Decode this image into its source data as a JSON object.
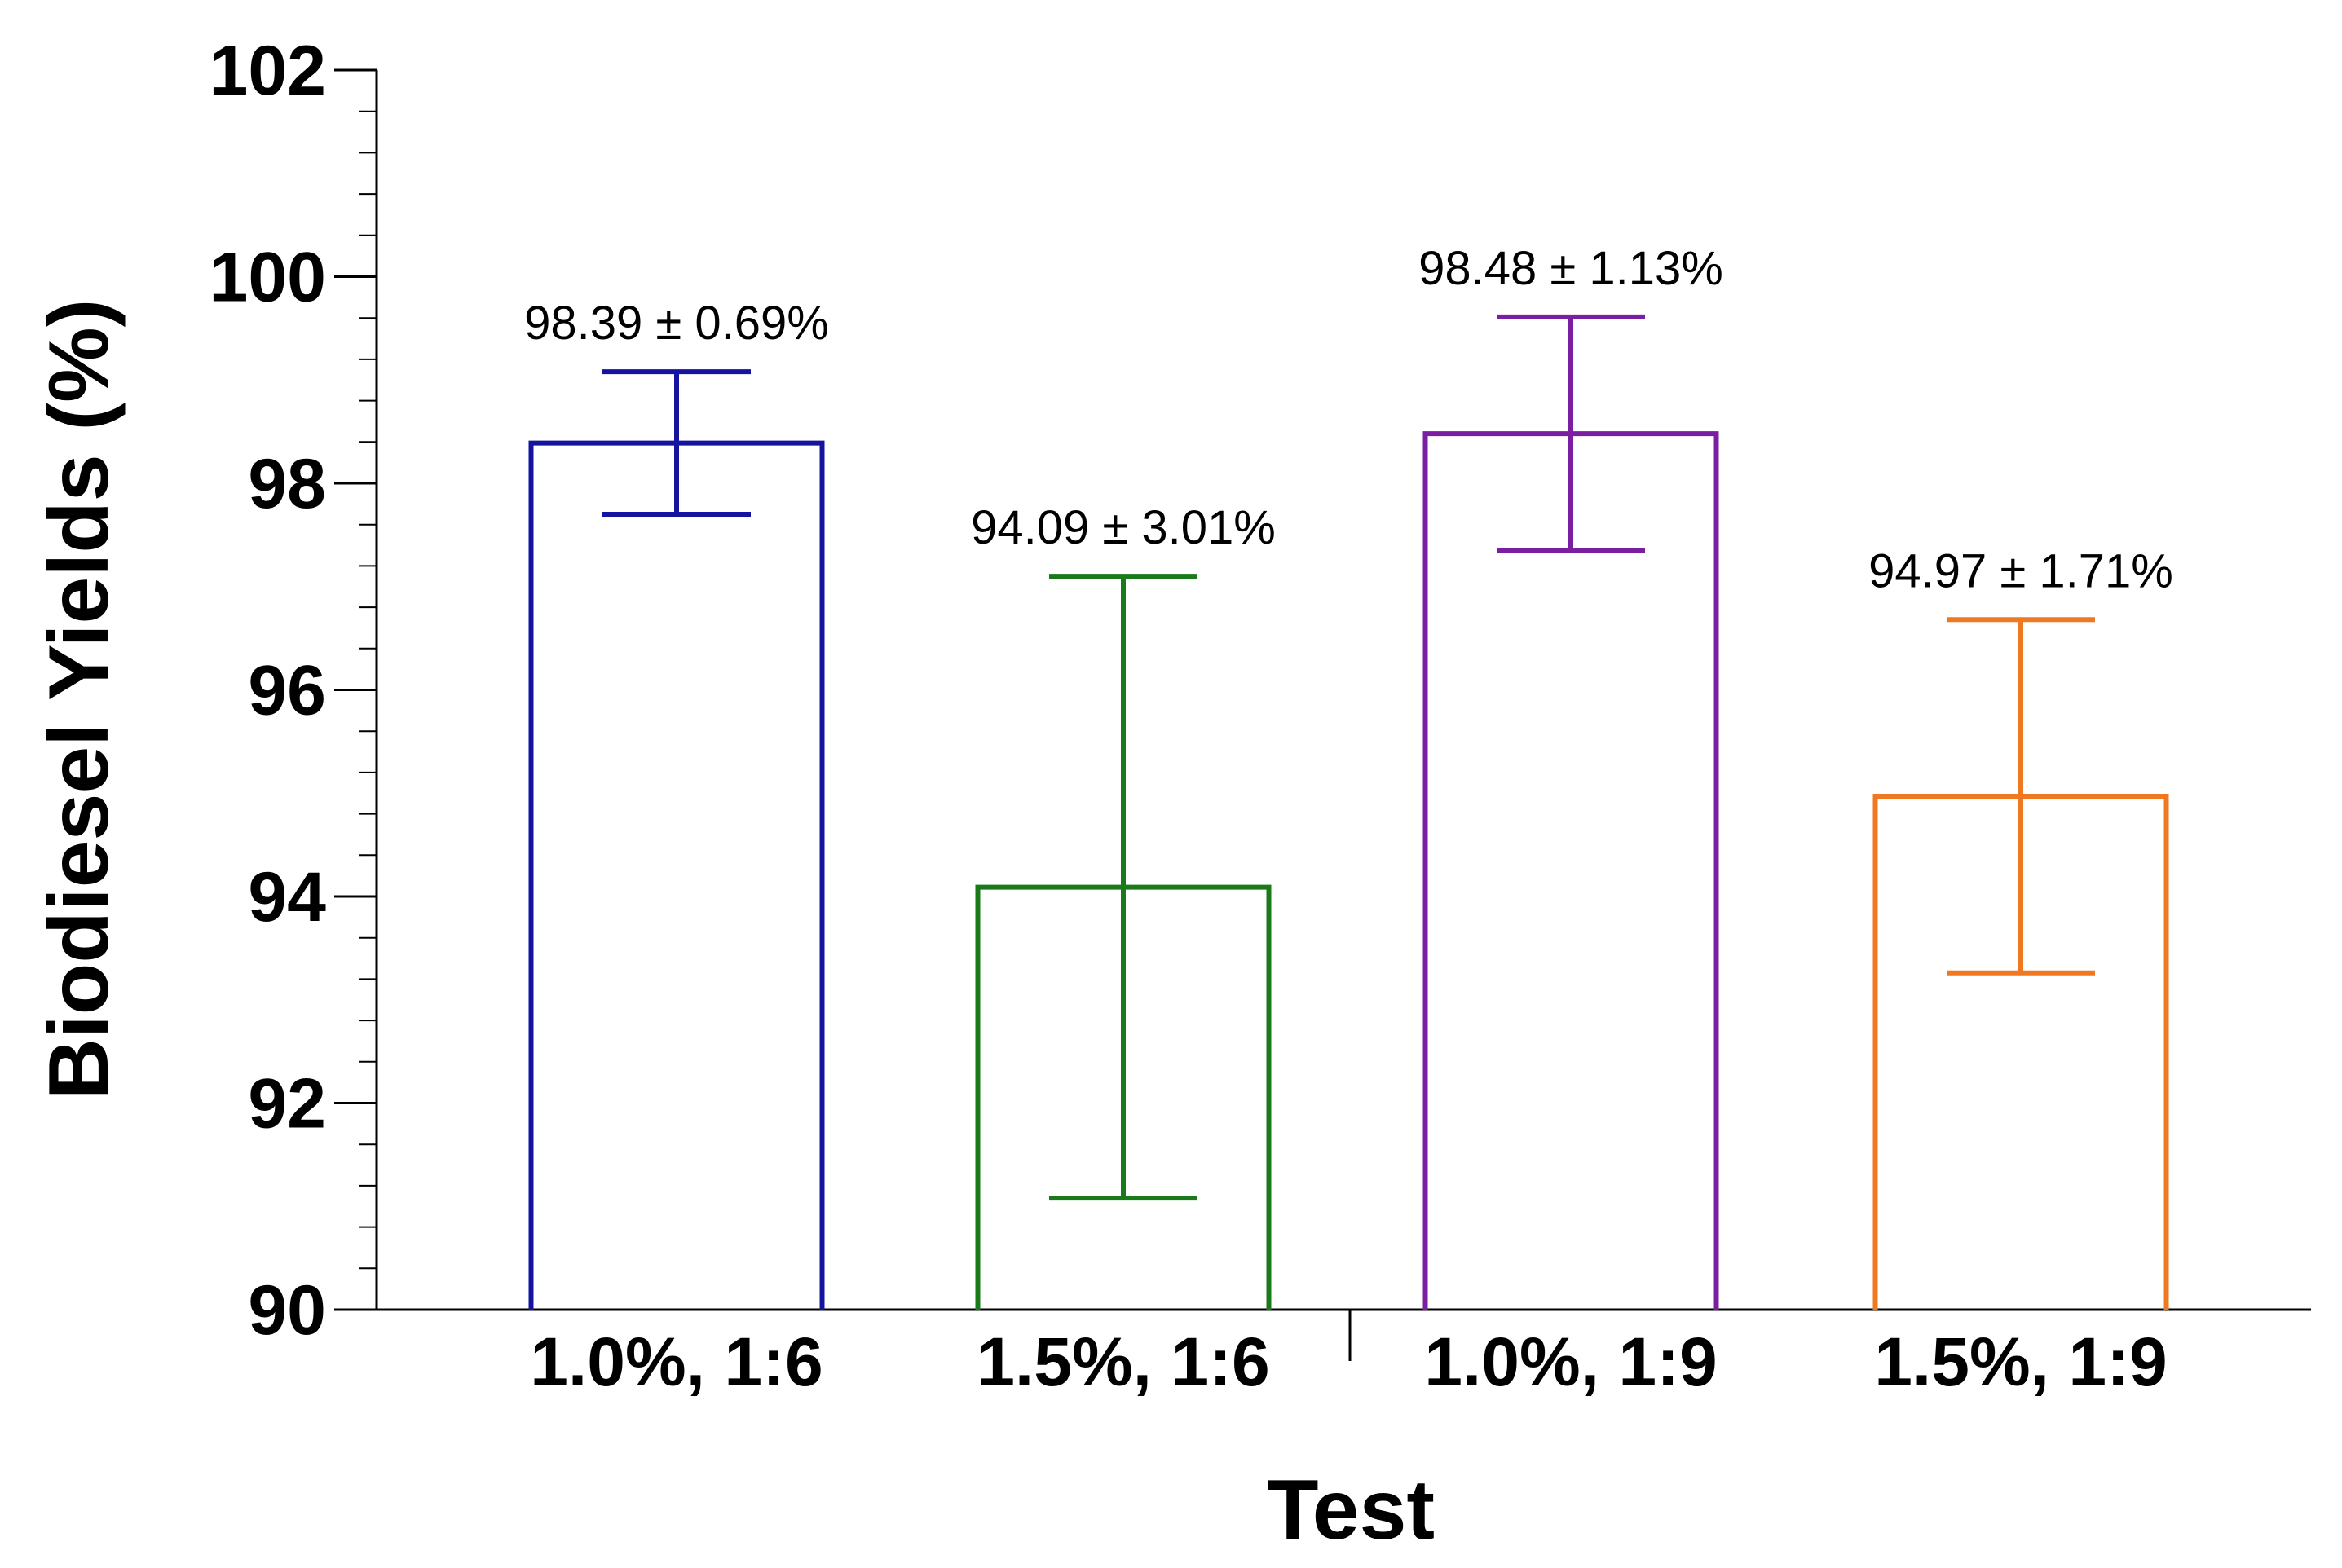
{
  "chart_data": {
    "type": "bar",
    "title": "",
    "xlabel": "Test",
    "ylabel": "Biodiesel Yields (%)",
    "ylim": [
      90,
      102
    ],
    "yticks": [
      90,
      92,
      94,
      96,
      98,
      100,
      102
    ],
    "y_minor_step": 0.4,
    "grid": false,
    "legend": "none",
    "bar_style": "outline",
    "categories": [
      "1.0%, 1:6",
      "1.5%, 1:6",
      "1.0%, 1:9",
      "1.5%, 1:9"
    ],
    "values": [
      98.39,
      94.09,
      98.48,
      94.97
    ],
    "errors": [
      0.69,
      3.01,
      1.13,
      1.71
    ],
    "data_labels": [
      "98.39 ± 0.69%",
      "94.09 ± 3.01%",
      "98.48 ± 1.13%",
      "94.97 ± 1.71%"
    ],
    "colors": [
      "#1414a0",
      "#1a7a1a",
      "#7a1fa2",
      "#f07820"
    ]
  }
}
